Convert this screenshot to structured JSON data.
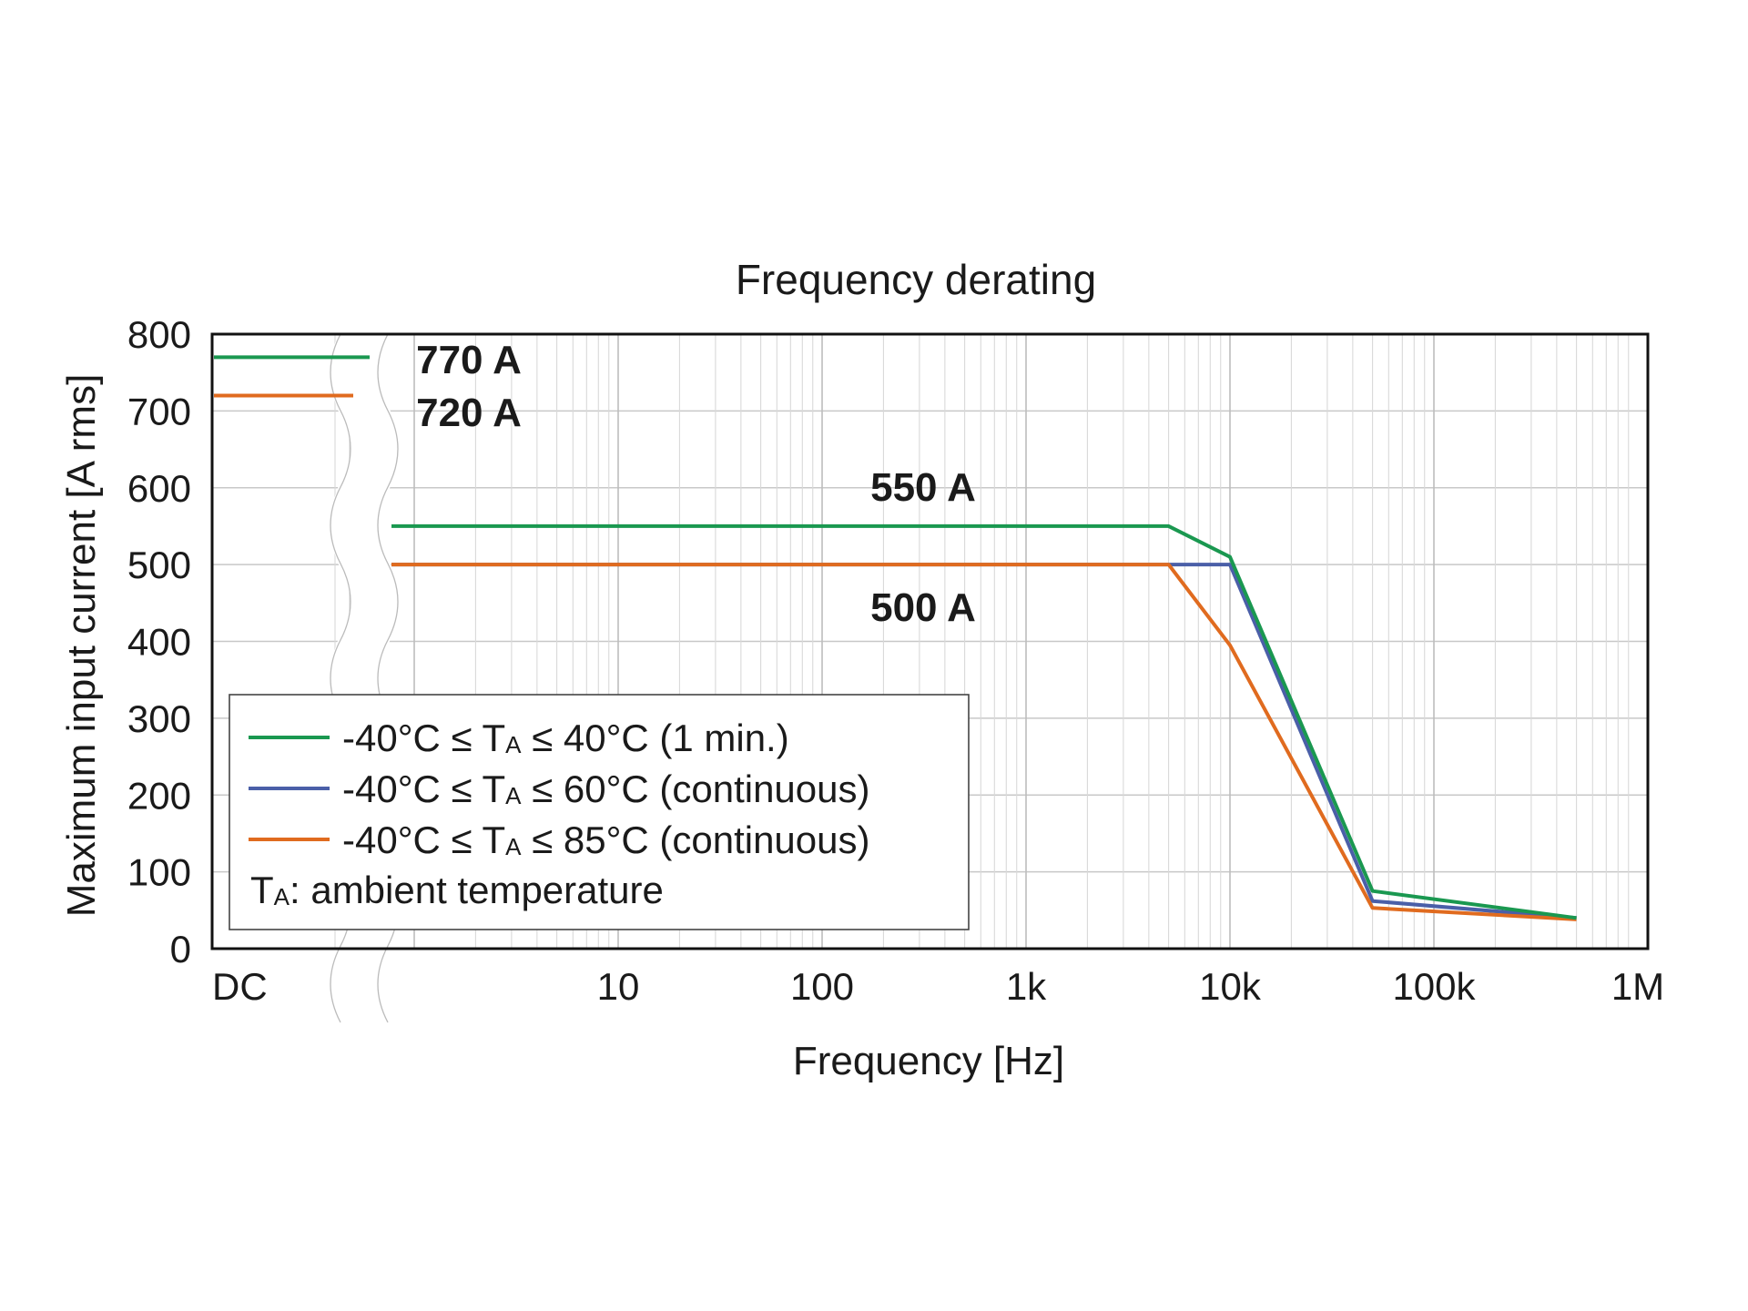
{
  "chart_data": {
    "type": "line",
    "title": "Frequency derating",
    "xlabel": "Frequency [Hz]",
    "ylabel": "Maximum input current [A rms]",
    "x_scale": "log (with broken axis at DC)",
    "xlim": [
      1,
      1000000
    ],
    "ylim": [
      0,
      800
    ],
    "x_tick_labels": [
      "DC",
      "10",
      "100",
      "1k",
      "10k",
      "100k",
      "1M"
    ],
    "x_tick_values": [
      null,
      10,
      100,
      1000,
      10000,
      100000,
      1000000
    ],
    "y_ticks": [
      0,
      100,
      200,
      300,
      400,
      500,
      600,
      700,
      800
    ],
    "y_tick_labels": [
      "0",
      "100",
      "200",
      "300",
      "400",
      "500",
      "600",
      "700",
      "800"
    ],
    "grid": true,
    "legend_position": "bottom-left",
    "series": [
      {
        "legend_prefix": "-40°C ≤ T",
        "legend_sub": "A",
        "legend_suffix": " ≤ 40°C (1 min.)",
        "color": "#1a9850",
        "dc_value": 770,
        "points": [
          [
            2,
            550
          ],
          [
            5000,
            550
          ],
          [
            10000,
            510
          ],
          [
            50000,
            75
          ],
          [
            500000,
            40
          ]
        ]
      },
      {
        "legend_prefix": "-40°C ≤ T",
        "legend_sub": "A",
        "legend_suffix": " ≤ 60°C (continuous)",
        "color": "#4a5fa8",
        "dc_value": null,
        "points": [
          [
            2,
            500
          ],
          [
            5000,
            500
          ],
          [
            10000,
            500
          ],
          [
            50000,
            62
          ],
          [
            500000,
            40
          ]
        ]
      },
      {
        "legend_prefix": "-40°C ≤ T",
        "legend_sub": "A",
        "legend_suffix": " ≤ 85°C (continuous)",
        "color": "#e06b1f",
        "dc_value": 720,
        "points": [
          [
            2,
            500
          ],
          [
            5000,
            500
          ],
          [
            10000,
            395
          ],
          [
            50000,
            53
          ],
          [
            500000,
            38
          ]
        ]
      }
    ],
    "legend_note_prefix": "T",
    "legend_note_sub": "A",
    "legend_note_suffix": ": ambient temperature",
    "annotations": [
      {
        "text": "770 A",
        "value": 770
      },
      {
        "text": "720 A",
        "value": 720
      },
      {
        "text": "550 A",
        "value": 550
      },
      {
        "text": "500 A",
        "value": 500
      }
    ]
  }
}
